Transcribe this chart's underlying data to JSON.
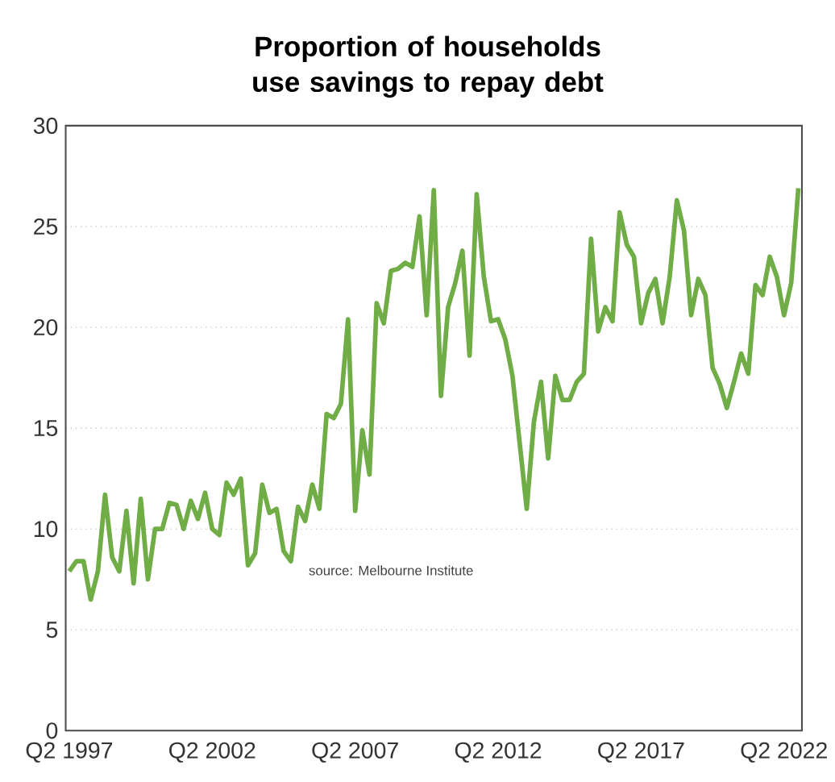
{
  "chart_data": {
    "type": "line",
    "title": "Proportion of households use savings to repay debt",
    "annotations": [
      "source: Melbourne Institute"
    ],
    "categories": [
      "Q2 1997",
      null,
      null,
      null,
      null,
      null,
      null,
      null,
      null,
      null,
      null,
      null,
      null,
      null,
      null,
      null,
      null,
      null,
      null,
      null,
      "Q2 2002",
      null,
      null,
      null,
      null,
      null,
      null,
      null,
      null,
      null,
      null,
      null,
      null,
      null,
      null,
      null,
      null,
      null,
      null,
      null,
      "Q2 2007",
      null,
      null,
      null,
      null,
      null,
      null,
      null,
      null,
      null,
      null,
      null,
      null,
      null,
      null,
      null,
      null,
      null,
      null,
      null,
      "Q2 2012",
      null,
      null,
      null,
      null,
      null,
      null,
      null,
      null,
      null,
      null,
      null,
      null,
      null,
      null,
      null,
      null,
      null,
      null,
      null,
      "Q2 2017",
      null,
      null,
      null,
      null,
      null,
      null,
      null,
      null,
      null,
      null,
      null,
      null,
      null,
      null,
      null,
      null,
      null,
      null,
      null,
      "Q2 2022",
      null,
      null
    ],
    "series": [
      {
        "color": "#70ad47",
        "values": [
          7.9,
          8.4,
          8.4,
          6.5,
          7.9,
          11.7,
          8.6,
          7.9,
          10.9,
          7.3,
          11.5,
          7.5,
          10.0,
          10.0,
          11.3,
          11.2,
          10.0,
          11.4,
          10.5,
          11.8,
          10.0,
          9.7,
          12.3,
          11.7,
          12.5,
          8.2,
          8.8,
          12.2,
          10.8,
          11.0,
          8.9,
          8.4,
          11.1,
          10.4,
          12.2,
          11.0,
          15.7,
          15.5,
          16.2,
          20.4,
          10.9,
          14.9,
          12.7,
          21.2,
          20.2,
          22.8,
          22.9,
          23.2,
          23.0,
          25.5,
          20.6,
          26.8,
          16.6,
          21.0,
          22.2,
          23.8,
          18.6,
          26.6,
          22.5,
          20.3,
          20.4,
          19.4,
          17.6,
          14.3,
          11.0,
          15.3,
          17.3,
          13.5,
          17.6,
          16.4,
          16.4,
          17.3,
          17.7,
          24.4,
          19.8,
          21.0,
          20.3,
          25.7,
          24.1,
          23.5,
          20.2,
          21.7,
          22.4,
          20.2,
          22.5,
          26.3,
          24.8,
          20.6,
          22.4,
          21.6,
          18.0,
          17.2,
          16.0,
          17.3,
          18.7,
          17.7,
          22.1,
          21.6,
          23.5,
          22.5,
          20.6,
          22.2,
          26.9
        ]
      }
    ],
    "ylim": [
      0,
      30
    ],
    "yticks": [
      0,
      5,
      10,
      15,
      20,
      25,
      30
    ],
    "grid": "y",
    "marker": "none",
    "line_style": "solid"
  }
}
